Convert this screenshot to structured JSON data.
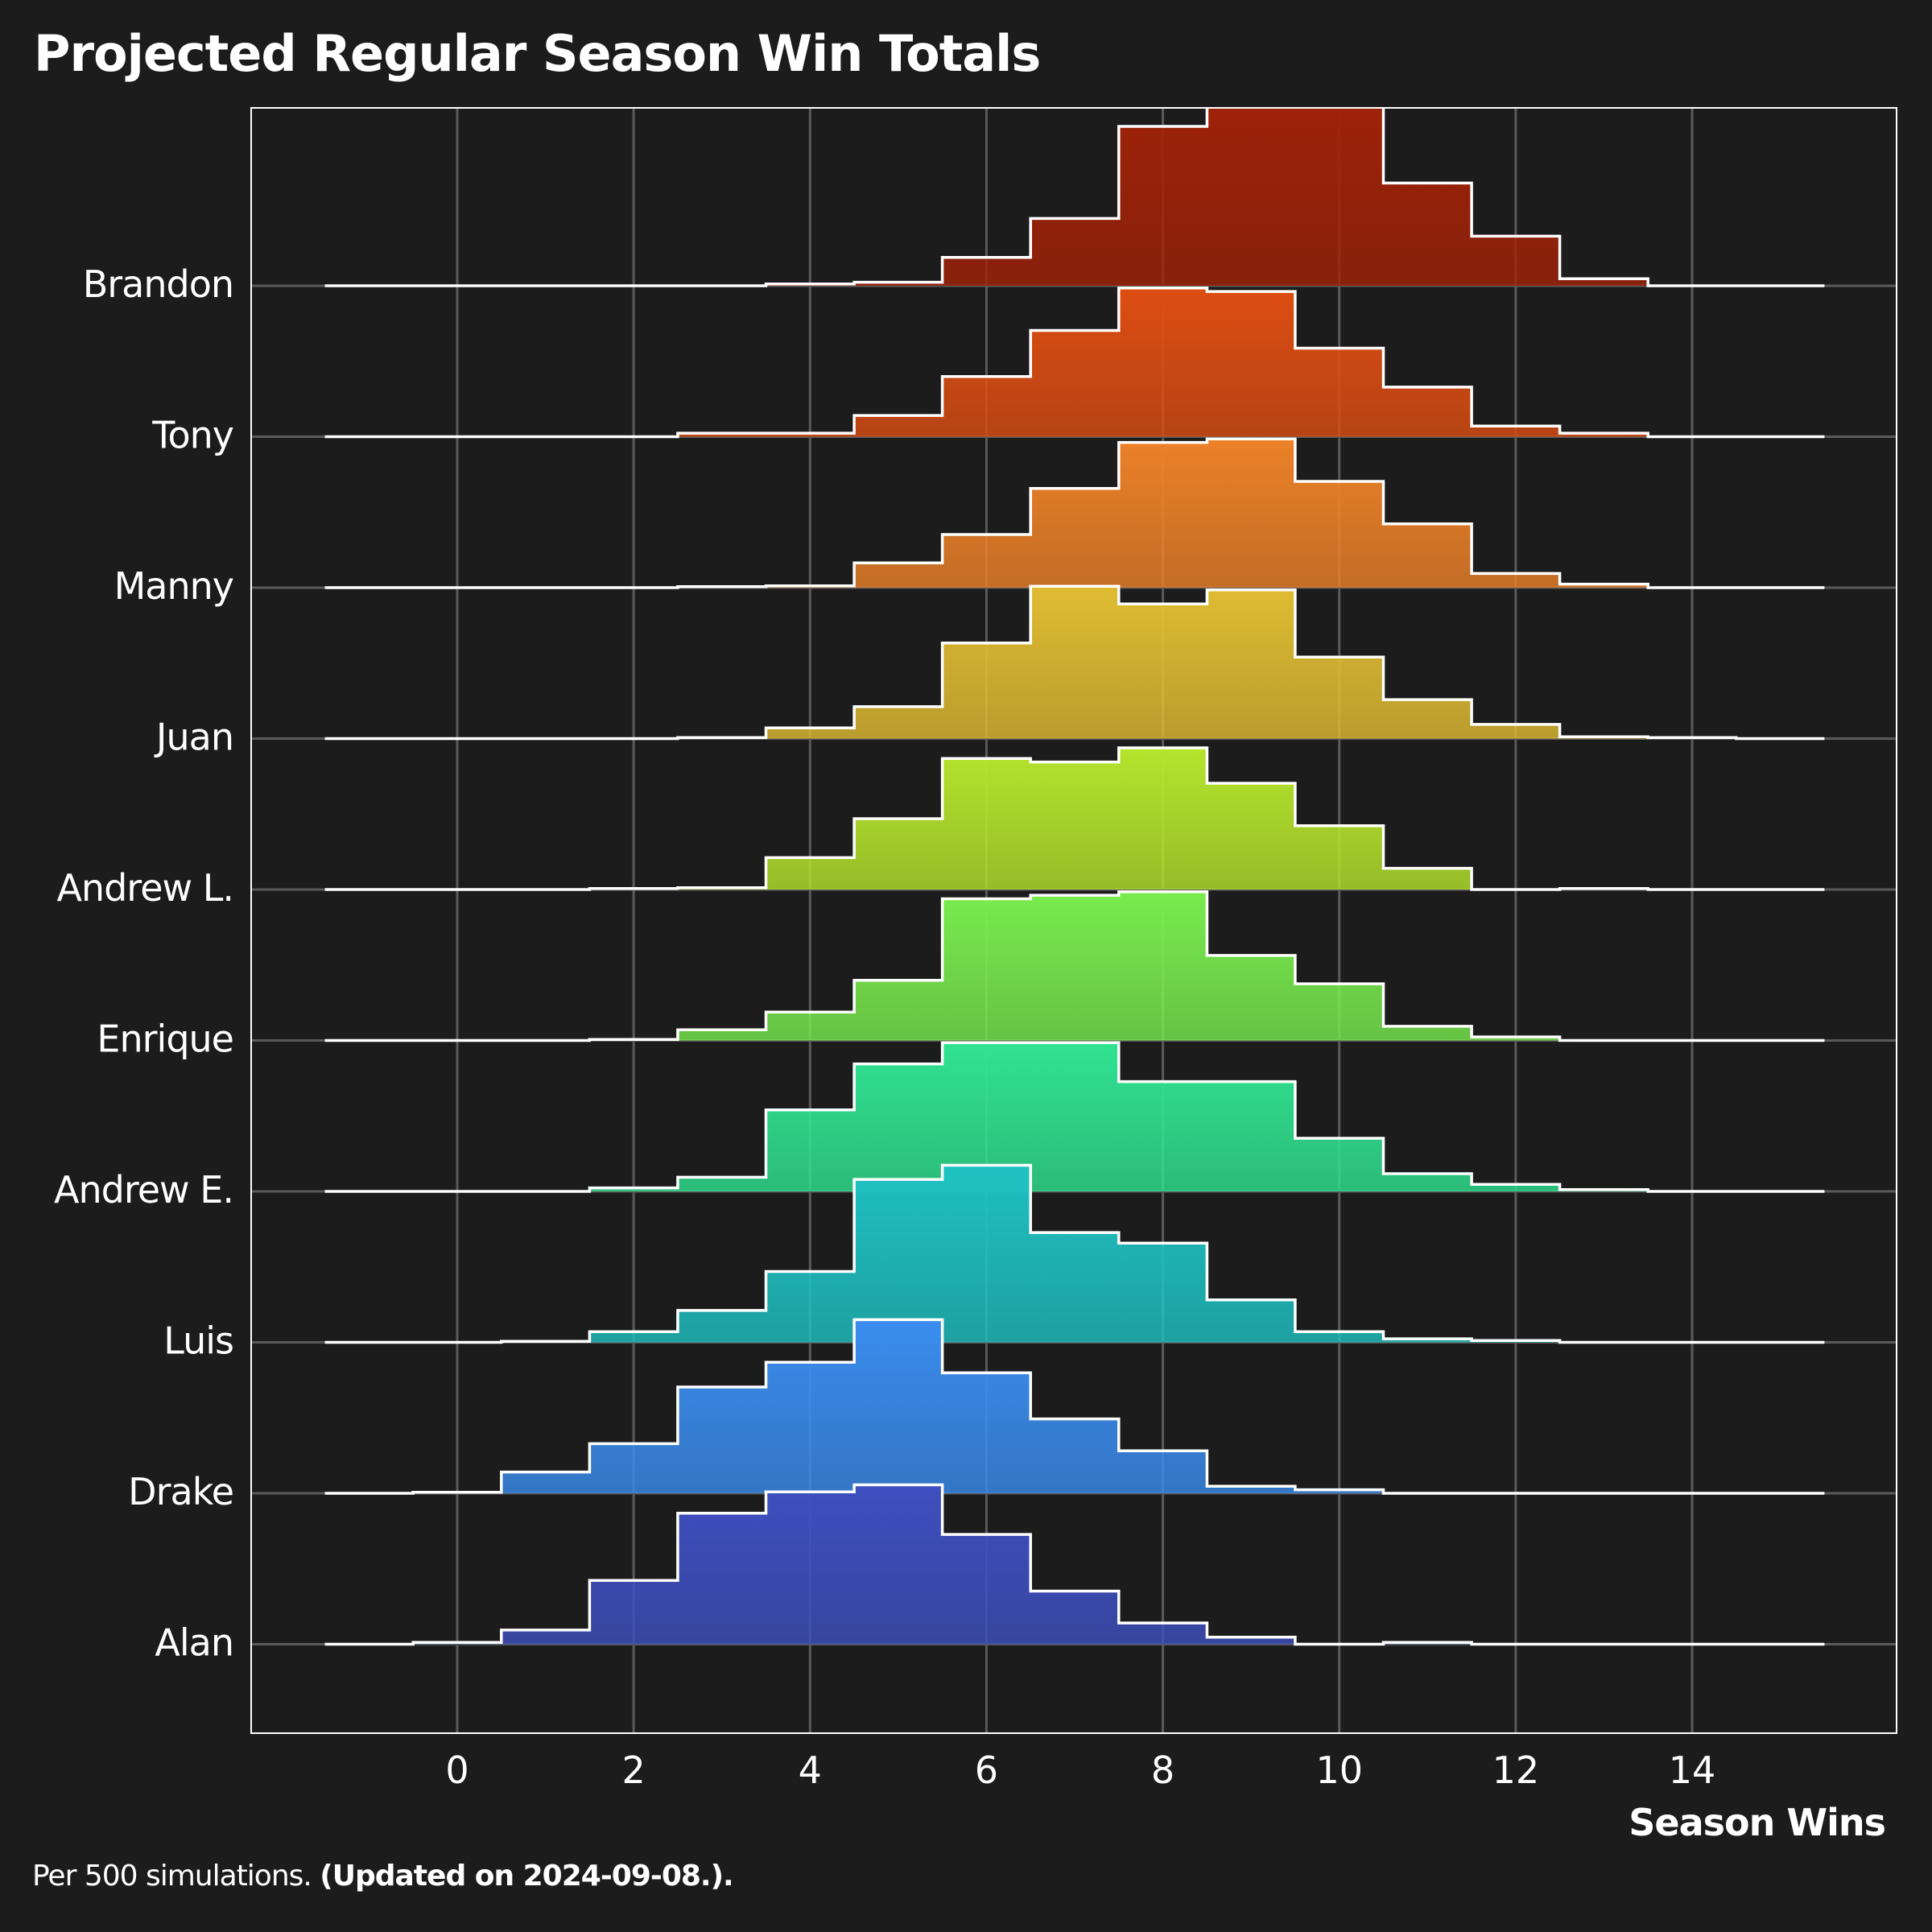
{
  "title": "Projected Regular Season Win Totals",
  "footer": {
    "note": "Per 500 simulations.",
    "updated": "(Updated on 2024-09-08.)."
  },
  "chart_data": {
    "type": "ridgeline-histogram",
    "title": "Projected Regular Season Win Totals",
    "xlabel": "Season Wins",
    "ylabel": "",
    "x_ticks": [
      0,
      2,
      4,
      6,
      8,
      10,
      12,
      14
    ],
    "xlim": [
      -2.33,
      16.33
    ],
    "bins": [
      -1,
      0,
      1,
      2,
      3,
      4,
      5,
      6,
      7,
      8,
      9,
      10,
      11,
      12,
      13,
      14,
      15
    ],
    "grid": true,
    "series": [
      {
        "name": "Brandon",
        "color": "#a32208",
        "values": [
          0,
          0,
          0,
          0,
          0,
          0.5,
          1,
          8,
          19,
          45,
          62,
          62,
          29,
          14,
          2,
          0,
          0
        ]
      },
      {
        "name": "Tony",
        "color": "#dd4d12",
        "values": [
          0,
          0,
          0,
          0,
          1,
          1,
          6,
          17,
          30,
          42,
          41,
          25,
          14,
          3,
          1,
          0,
          0
        ]
      },
      {
        "name": "Manny",
        "color": "#ec8128",
        "values": [
          0,
          0,
          0,
          0,
          0.3,
          0.5,
          7,
          15,
          28,
          41,
          42,
          30,
          18,
          4,
          1,
          0,
          0
        ]
      },
      {
        "name": "Juan",
        "color": "#e0bc32",
        "values": [
          0,
          0,
          0,
          0,
          0.3,
          3,
          9,
          27,
          43,
          38,
          42,
          23,
          11,
          4,
          0.5,
          0.3,
          0
        ]
      },
      {
        "name": "Andrew L.",
        "color": "#b5e42c",
        "values": [
          0,
          0,
          0,
          0.3,
          0.5,
          9,
          20,
          37,
          36,
          40,
          30,
          18,
          6,
          0,
          0.3,
          0,
          0
        ]
      },
      {
        "name": "Enrique",
        "color": "#79ec4e",
        "values": [
          0,
          0,
          0,
          0.3,
          3,
          8,
          17,
          40,
          41,
          42,
          24,
          16,
          4,
          1,
          0,
          0,
          0
        ]
      },
      {
        "name": "Andrew E.",
        "color": "#30e391",
        "values": [
          0,
          0,
          0,
          1,
          4,
          23,
          36,
          42,
          42,
          31,
          31,
          15,
          5,
          2,
          0.5,
          0,
          0
        ]
      },
      {
        "name": "Luis",
        "color": "#1fc1c2",
        "values": [
          0,
          0,
          0.3,
          3,
          9,
          20,
          46,
          50,
          31,
          28,
          12,
          3,
          1,
          0.5,
          0,
          0,
          0
        ]
      },
      {
        "name": "Drake",
        "color": "#3a8cee",
        "values": [
          0,
          0.3,
          6,
          14,
          30,
          37,
          49,
          34,
          21,
          12,
          2,
          1,
          0,
          0,
          0,
          0,
          0
        ]
      },
      {
        "name": "Alan",
        "color": "#3e4fc0",
        "values": [
          0,
          0.5,
          4,
          18,
          37,
          43,
          45,
          31,
          15,
          6,
          2,
          0,
          0.5,
          0,
          0,
          0,
          0
        ]
      }
    ]
  }
}
